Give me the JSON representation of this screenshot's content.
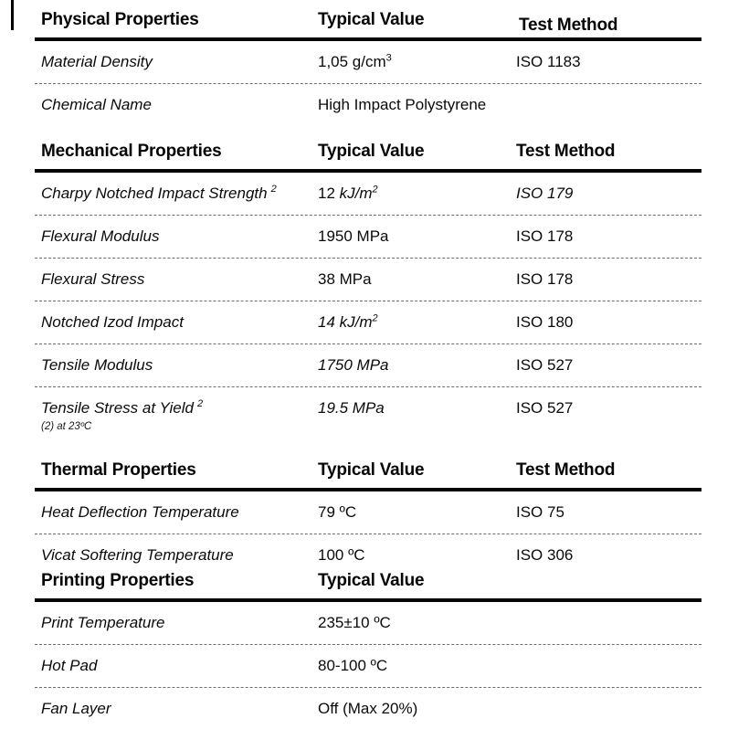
{
  "page": {
    "background": "#ffffff",
    "text_color": "#0a0a0a",
    "rule_color": "#050505",
    "dotted_line_color": "#6e6e6e"
  },
  "sections": [
    {
      "title": "Physical Properties",
      "value_header": "Typical Value",
      "method_header": "Test Method",
      "rows": [
        {
          "property": "Material Density",
          "value": "1,05 g/cm",
          "value_sup": "3",
          "method": "ISO 1183"
        },
        {
          "property": "Chemical Name",
          "value": "High Impact Polystyrene",
          "method": ""
        }
      ]
    },
    {
      "title": "Mechanical Properties",
      "value_header": "Typical Value",
      "method_header": "Test Method",
      "rows": [
        {
          "property": "Charpy Notched Impact Strength",
          "property_sup": "2",
          "value_num": "12 ",
          "value_unit": "kJ/m",
          "value_sup": "2",
          "method": "ISO 179"
        },
        {
          "property": "Flexural Modulus",
          "value": "1950 MPa",
          "method": "ISO 178"
        },
        {
          "property": "Flexural Stress",
          "value": "38 MPa",
          "method": "ISO 178"
        },
        {
          "property": "Notched Izod Impact",
          "value": "14 kJ/m",
          "value_sup": "2",
          "method": "ISO 180"
        },
        {
          "property": "Tensile Modulus",
          "value": "1750 MPa",
          "method": "ISO 527"
        },
        {
          "property": "Tensile Stress at Yield",
          "property_sup": "2",
          "value": "19.5 MPa",
          "method": "ISO 527"
        }
      ],
      "footnote": "(2) at 23ºC"
    },
    {
      "title": "Thermal Properties",
      "value_header": "Typical Value",
      "method_header": "Test Method",
      "rows": [
        {
          "property": "Heat Deflection Temperature",
          "value": "79 ºC",
          "method": "ISO 75"
        },
        {
          "property": "Vicat Softering Temperature",
          "value": "100 ºC",
          "method": "ISO 306"
        }
      ]
    },
    {
      "title": "Printing Properties",
      "value_header": "Typical Value",
      "rows": [
        {
          "property": "Print Temperature",
          "value": "235±10 ºC"
        },
        {
          "property": "Hot Pad",
          "value": "80-100 ºC"
        },
        {
          "property": "Fan Layer",
          "value": "Off (Max 20%)"
        }
      ]
    }
  ]
}
